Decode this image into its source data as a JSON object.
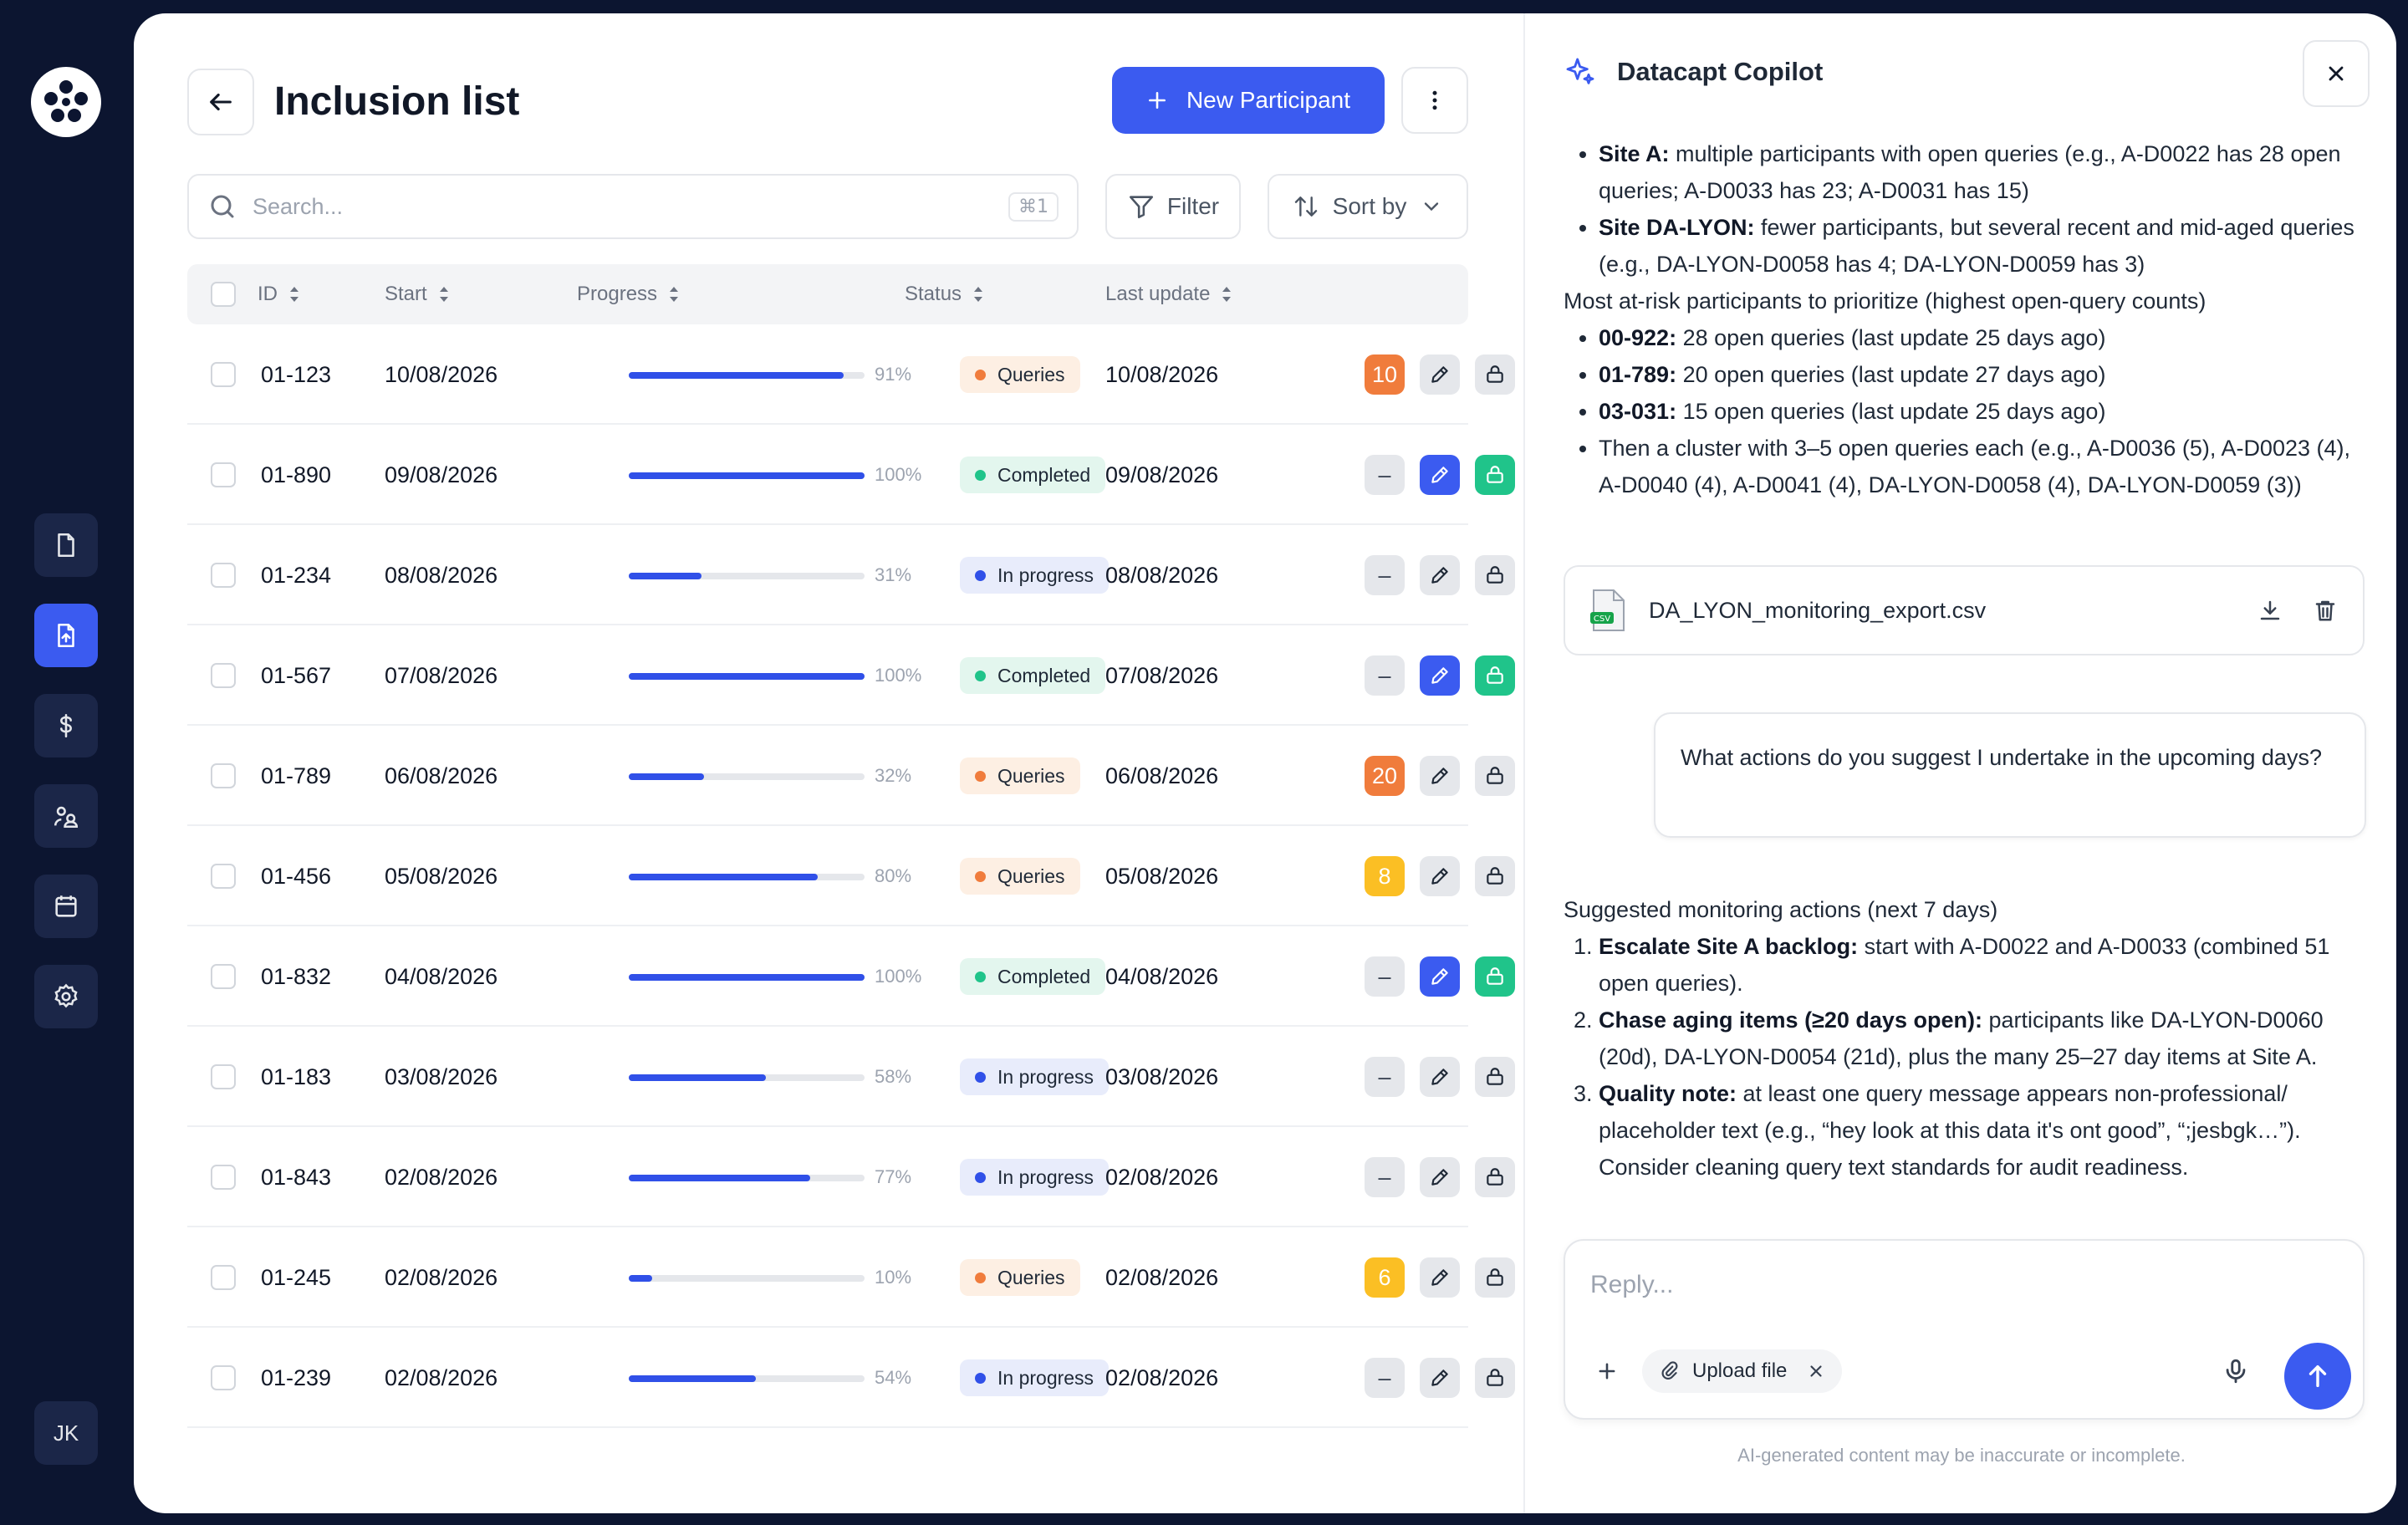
{
  "nav": {
    "avatar_initials": "JK",
    "items": [
      {
        "icon": "document-icon",
        "active": false
      },
      {
        "icon": "document-upload-icon",
        "active": true
      },
      {
        "icon": "dollar-icon",
        "active": false
      },
      {
        "icon": "users-icon",
        "active": false
      },
      {
        "icon": "calendar-icon",
        "active": false
      },
      {
        "icon": "gear-icon",
        "active": false
      }
    ]
  },
  "header": {
    "title": "Inclusion list",
    "new_button_label": "New Participant"
  },
  "toolbar": {
    "search_placeholder": "Search...",
    "search_shortcut": "⌘1",
    "filter_label": "Filter",
    "sort_label": "Sort by"
  },
  "table": {
    "columns": [
      "ID",
      "Start",
      "Progress",
      "Status",
      "Last update"
    ],
    "rows": [
      {
        "id": "01-123",
        "start": "10/08/2026",
        "progress": 91,
        "progress_label": "91%",
        "status": "Queries",
        "last_update": "10/08/2026",
        "queries": "10",
        "query_color": "orange",
        "edit_active": false,
        "lock_active": false
      },
      {
        "id": "01-890",
        "start": "09/08/2026",
        "progress": 100,
        "progress_label": "100%",
        "status": "Completed",
        "last_update": "09/08/2026",
        "queries": "–",
        "query_color": "none",
        "edit_active": true,
        "lock_active": true
      },
      {
        "id": "01-234",
        "start": "08/08/2026",
        "progress": 31,
        "progress_label": "31%",
        "status": "In progress",
        "last_update": "08/08/2026",
        "queries": "–",
        "query_color": "none",
        "edit_active": false,
        "lock_active": false
      },
      {
        "id": "01-567",
        "start": "07/08/2026",
        "progress": 100,
        "progress_label": "100%",
        "status": "Completed",
        "last_update": "07/08/2026",
        "queries": "–",
        "query_color": "none",
        "edit_active": true,
        "lock_active": true
      },
      {
        "id": "01-789",
        "start": "06/08/2026",
        "progress": 32,
        "progress_label": "32%",
        "status": "Queries",
        "last_update": "06/08/2026",
        "queries": "20",
        "query_color": "orange",
        "edit_active": false,
        "lock_active": false
      },
      {
        "id": "01-456",
        "start": "05/08/2026",
        "progress": 80,
        "progress_label": "80%",
        "status": "Queries",
        "last_update": "05/08/2026",
        "queries": "8",
        "query_color": "yellow",
        "edit_active": false,
        "lock_active": false
      },
      {
        "id": "01-832",
        "start": "04/08/2026",
        "progress": 100,
        "progress_label": "100%",
        "status": "Completed",
        "last_update": "04/08/2026",
        "queries": "–",
        "query_color": "none",
        "edit_active": true,
        "lock_active": true
      },
      {
        "id": "01-183",
        "start": "03/08/2026",
        "progress": 58,
        "progress_label": "58%",
        "status": "In progress",
        "last_update": "03/08/2026",
        "queries": "–",
        "query_color": "none",
        "edit_active": false,
        "lock_active": false
      },
      {
        "id": "01-843",
        "start": "02/08/2026",
        "progress": 77,
        "progress_label": "77%",
        "status": "In progress",
        "last_update": "02/08/2026",
        "queries": "–",
        "query_color": "none",
        "edit_active": false,
        "lock_active": false
      },
      {
        "id": "01-245",
        "start": "02/08/2026",
        "progress": 10,
        "progress_label": "10%",
        "status": "Queries",
        "last_update": "02/08/2026",
        "queries": "6",
        "query_color": "yellow",
        "edit_active": false,
        "lock_active": false
      },
      {
        "id": "01-239",
        "start": "02/08/2026",
        "progress": 54,
        "progress_label": "54%",
        "status": "In progress",
        "last_update": "02/08/2026",
        "queries": "–",
        "query_color": "none",
        "edit_active": false,
        "lock_active": false
      }
    ]
  },
  "copilot": {
    "title": "Datacapt Copilot",
    "msg1": {
      "b1_label": "Site A:",
      "b1_text": " multiple participants with open queries (e.g., A-D0022 has 28 open queries; A-D0033 has 23; A-D0031 has 15)",
      "b2_label": "Site DA-LYON:",
      "b2_text": " fewer participants, but several recent and mid-aged queries (e.g., DA-LYON-D0058 has 4; DA-LYON-D0059 has 3)",
      "heading": "Most at-risk participants to prioritize (highest open-query counts)",
      "r1_label": "00-922:",
      "r1_text": " 28 open queries (last update 25 days ago)",
      "r2_label": "01-789:",
      "r2_text": " 20 open queries (last update 27 days ago)",
      "r3_label": "03-031:",
      "r3_text": " 15 open queries (last update 25 days ago)",
      "r4_text": "Then a cluster with 3–5 open queries each (e.g., A-D0036 (5), A-D0023 (4), A-D0040 (4), A-D0041 (4), DA-LYON-D0058 (4), DA-LYON-D0059 (3))"
    },
    "file_name": "DA_LYON_monitoring_export.csv",
    "file_type": "CSV",
    "user_msg": "What actions do you suggest I undertake in the upcoming days?",
    "msg2": {
      "heading": "Suggested monitoring actions (next 7 days)",
      "a1_label": "Escalate Site A backlog:",
      "a1_text": " start with A-D0022 and A-D0033 (combined 51 open queries).",
      "a2_label": "Chase aging items (≥20 days open):",
      "a2_text": " participants like DA-LYON-D0060 (20d), DA-LYON-D0054 (21d), plus the many 25–27 day items at Site A.",
      "a3_label": "Quality note:",
      "a3_text": " at least one query message appears non-professional/ placeholder text (e.g., “hey look at this data it's ont good”, “;jesbgk…”). Consider cleaning query text standards for audit readiness."
    },
    "reply_placeholder": "Reply...",
    "upload_label": "Upload file",
    "disclaimer": "AI-generated content may be inaccurate or incomplete."
  }
}
